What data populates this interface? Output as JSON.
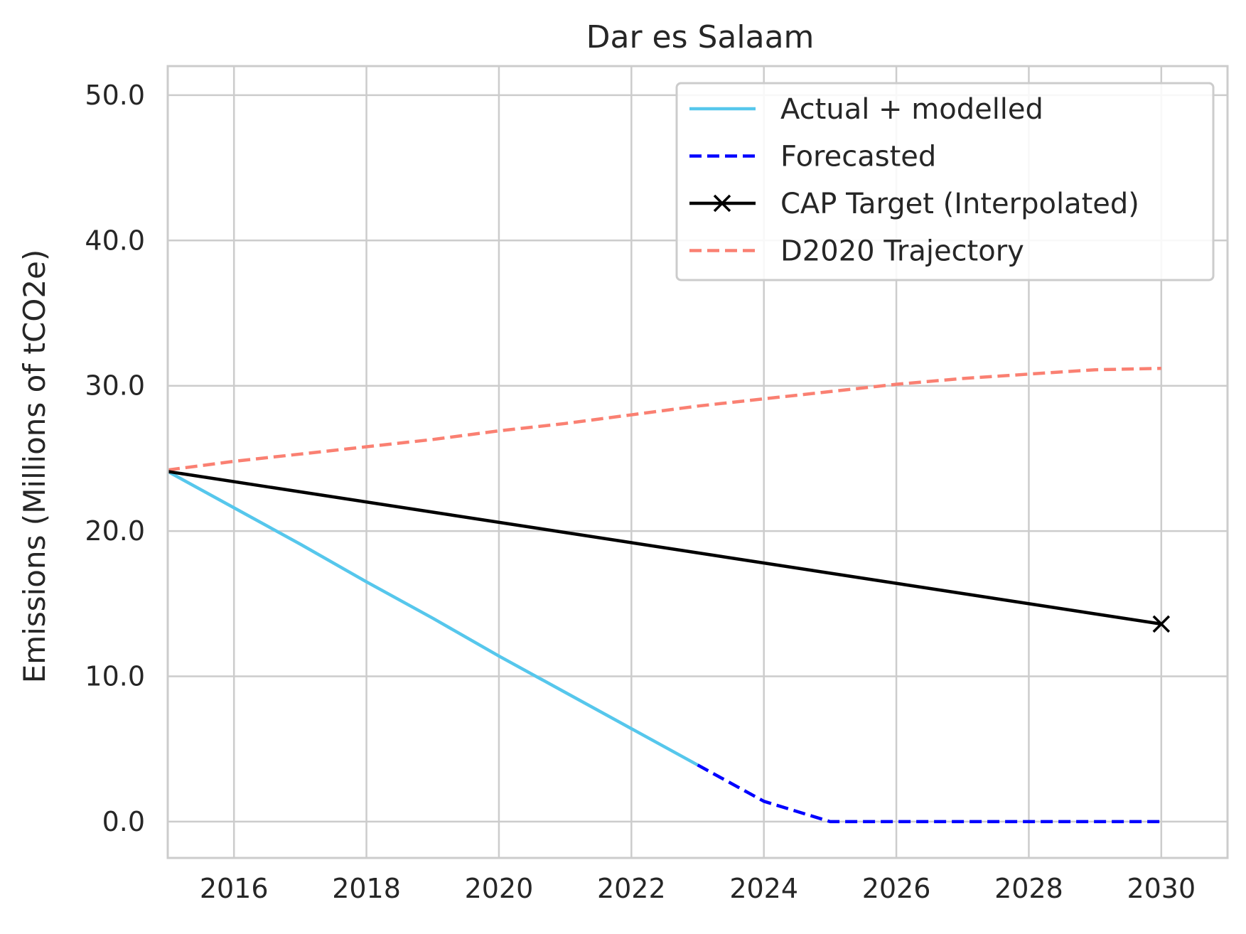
{
  "chart_data": {
    "type": "line",
    "title": "Dar es Salaam",
    "xlabel": "",
    "ylabel": "Emissions (Millions of tCO2e)",
    "xlim": [
      2015,
      2031
    ],
    "ylim": [
      -2.5,
      52
    ],
    "xticks": [
      2016,
      2018,
      2020,
      2022,
      2024,
      2026,
      2028,
      2030
    ],
    "yticks": [
      0,
      10,
      20,
      30,
      40,
      50
    ],
    "ytick_labels": [
      "0.0",
      "10.0",
      "20.0",
      "30.0",
      "40.0",
      "50.0"
    ],
    "grid": true,
    "legend_position": "top-right",
    "series": [
      {
        "name": "Actual + modelled",
        "color": "#56c7ec",
        "style": "solid",
        "marker": "none",
        "x": [
          2015,
          2016,
          2017,
          2018,
          2019,
          2020,
          2021,
          2022,
          2023
        ],
        "y": [
          24.1,
          21.6,
          19.1,
          16.5,
          14.0,
          11.4,
          8.9,
          6.4,
          3.9
        ]
      },
      {
        "name": "Forecasted",
        "color": "#0000ff",
        "style": "dashed",
        "marker": "none",
        "x": [
          2023,
          2024,
          2025,
          2026,
          2027,
          2028,
          2029,
          2030
        ],
        "y": [
          3.9,
          1.4,
          0.0,
          0.0,
          0.0,
          0.0,
          0.0,
          0.0
        ]
      },
      {
        "name": "CAP Target (Interpolated)",
        "color": "#000000",
        "style": "solid",
        "marker": "x",
        "marker_points": [
          [
            2030,
            13.6
          ]
        ],
        "x": [
          2015,
          2030
        ],
        "y": [
          24.1,
          13.6
        ]
      },
      {
        "name": "D2020 Trajectory",
        "color": "#fa8072",
        "style": "dashed",
        "marker": "none",
        "x": [
          2015,
          2016,
          2017,
          2018,
          2019,
          2020,
          2021,
          2022,
          2023,
          2024,
          2025,
          2026,
          2027,
          2028,
          2029,
          2030
        ],
        "y": [
          24.2,
          24.8,
          25.3,
          25.8,
          26.3,
          26.9,
          27.4,
          28.0,
          28.6,
          29.1,
          29.6,
          30.1,
          30.5,
          30.8,
          31.1,
          31.2
        ]
      }
    ]
  }
}
